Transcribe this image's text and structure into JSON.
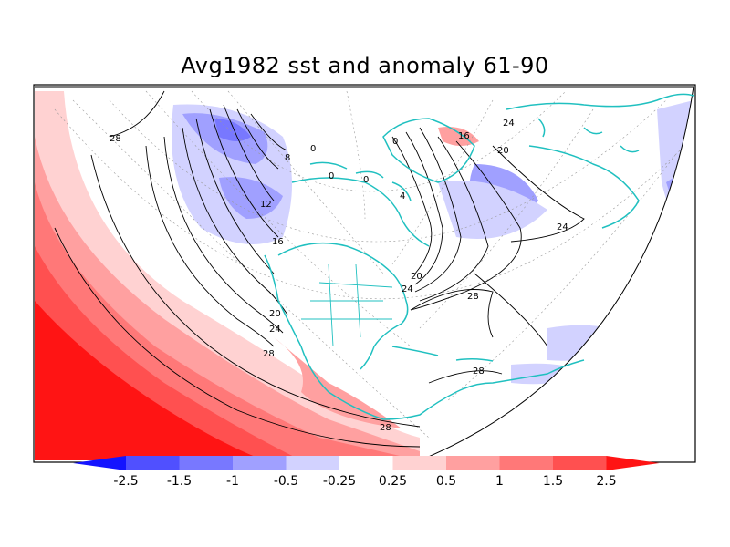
{
  "title": "Avg1982 sst and anomaly 61-90",
  "colorbar": {
    "tick_labels": [
      "-2.5",
      "-1.5",
      "-1",
      "-0.5",
      "-0.25",
      "0.25",
      "0.5",
      "1",
      "1.5",
      "2.5"
    ],
    "colors": [
      "#1414ff",
      "#5050ff",
      "#7878ff",
      "#a0a0ff",
      "#d2d2ff",
      "#ffffff",
      "#ffd2d2",
      "#ffa0a0",
      "#ff7878",
      "#ff5050",
      "#ff1414"
    ],
    "under_color": "#1414ff",
    "over_color": "#ff1414"
  },
  "coast_color": "#20c0c0",
  "contour_labels": [
    "28",
    "8",
    "12",
    "16",
    "20",
    "24",
    "28",
    "0",
    "0",
    "0",
    "4",
    "0",
    "16",
    "20",
    "24",
    "24",
    "20",
    "24",
    "28",
    "28",
    "28"
  ]
}
